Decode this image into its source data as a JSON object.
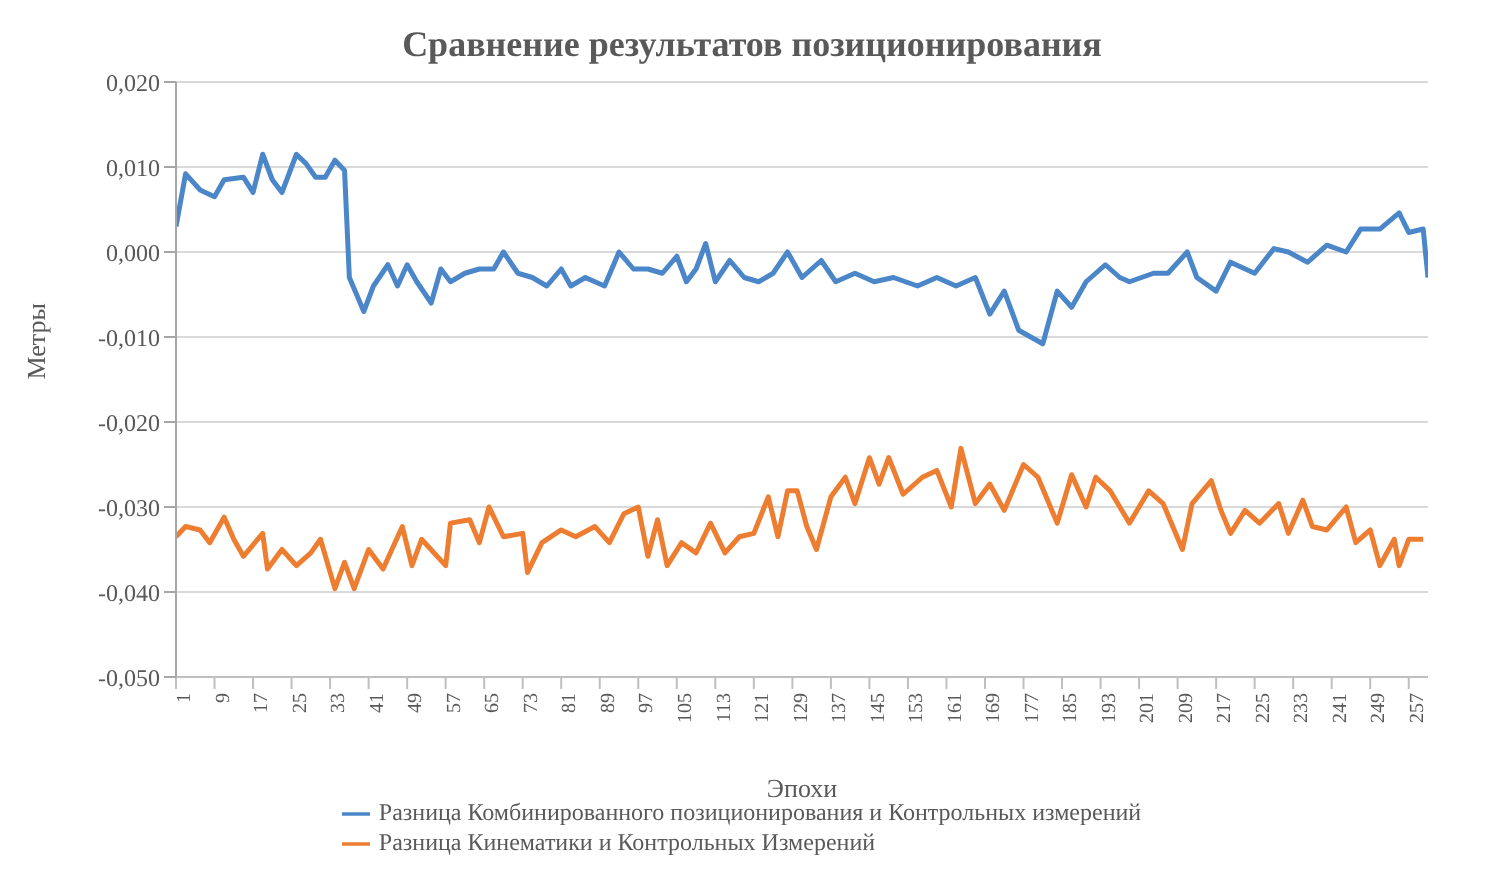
{
  "chart_data": {
    "type": "line",
    "title": "Сравнение результатов позиционирования",
    "xlabel": "Эпохи",
    "ylabel": "Метры",
    "xlim": [
      1,
      261
    ],
    "xticks": [
      1,
      9,
      17,
      25,
      33,
      41,
      49,
      57,
      65,
      73,
      81,
      89,
      97,
      105,
      113,
      121,
      129,
      137,
      145,
      153,
      161,
      169,
      177,
      185,
      193,
      201,
      209,
      217,
      225,
      233,
      241,
      249,
      257
    ],
    "ylim": [
      -0.05,
      0.02
    ],
    "yticks": [
      {
        "value": -0.05,
        "label": "-0,050"
      },
      {
        "value": -0.04,
        "label": "-0,040"
      },
      {
        "value": -0.03,
        "label": "-0,030"
      },
      {
        "value": -0.02,
        "label": "-0,020"
      },
      {
        "value": -0.01,
        "label": "-0,010"
      },
      {
        "value": 0,
        "label": "0,000"
      },
      {
        "value": 0.01,
        "label": "0,010"
      },
      {
        "value": 0.02,
        "label": "0,020"
      }
    ],
    "grid": "y",
    "legend": "bottom",
    "marker": "none",
    "line_style": "solid",
    "series": [
      {
        "name": "Разница Комбинированного позиционирования и Контрольных измерений",
        "color": "#4a86c8",
        "x": [
          1,
          3,
          6,
          9,
          11,
          15,
          17,
          19,
          21,
          23,
          26,
          28,
          30,
          32,
          34,
          36,
          37,
          40,
          42,
          45,
          47,
          49,
          51,
          54,
          56,
          58,
          61,
          64,
          67,
          69,
          72,
          75,
          78,
          81,
          83,
          86,
          90,
          93,
          96,
          99,
          102,
          105,
          107,
          109,
          111,
          113,
          116,
          119,
          122,
          125,
          128,
          131,
          135,
          138,
          142,
          146,
          150,
          155,
          159,
          163,
          167,
          170,
          173,
          176,
          181,
          184,
          187,
          190,
          194,
          197,
          199,
          204,
          207,
          211,
          213,
          217,
          220,
          225,
          229,
          232,
          236,
          240,
          244,
          247,
          251,
          255,
          257,
          260,
          261
        ],
        "values": [
          0.003,
          0.0092,
          0.0073,
          0.0065,
          0.0085,
          0.0088,
          0.007,
          0.0115,
          0.0085,
          0.007,
          0.0115,
          0.0104,
          0.0088,
          0.0088,
          0.0108,
          0.0096,
          -0.003,
          -0.007,
          -0.004,
          -0.0015,
          -0.004,
          -0.0015,
          -0.0035,
          -0.006,
          -0.002,
          -0.0035,
          -0.0025,
          -0.002,
          -0.002,
          0,
          -0.0025,
          -0.003,
          -0.004,
          -0.002,
          -0.004,
          -0.003,
          -0.004,
          0,
          -0.002,
          -0.002,
          -0.0025,
          -0.0005,
          -0.0035,
          -0.002,
          0.001,
          -0.0035,
          -0.001,
          -0.003,
          -0.0035,
          -0.0025,
          0,
          -0.003,
          -0.001,
          -0.0035,
          -0.0025,
          -0.0035,
          -0.003,
          -0.004,
          -0.003,
          -0.004,
          -0.003,
          -0.0073,
          -0.0046,
          -0.0092,
          -0.0108,
          -0.0046,
          -0.0065,
          -0.0035,
          -0.0015,
          -0.003,
          -0.0035,
          -0.0025,
          -0.0025,
          0,
          -0.003,
          -0.0046,
          -0.0012,
          -0.0025,
          0.0004,
          0,
          -0.0012,
          0.0008,
          0,
          0.0027,
          0.0027,
          0.0046,
          0.0023,
          0.0027,
          -0.003
        ]
      },
      {
        "name": "Разница Кинематики и Контрольных Измерений",
        "color": "#ed7d31",
        "x": [
          1,
          3,
          6,
          8,
          11,
          13,
          15,
          19,
          20,
          23,
          26,
          29,
          31,
          34,
          36,
          38,
          41,
          44,
          48,
          50,
          52,
          57,
          58,
          62,
          64,
          66,
          69,
          73,
          74,
          77,
          81,
          84,
          88,
          91,
          94,
          97,
          99,
          101,
          103,
          106,
          109,
          112,
          115,
          118,
          121,
          124,
          126,
          128,
          130,
          132,
          134,
          137,
          140,
          142,
          145,
          147,
          149,
          152,
          156,
          159,
          162,
          164,
          167,
          170,
          173,
          177,
          180,
          184,
          187,
          190,
          192,
          195,
          199,
          203,
          206,
          210,
          212,
          216,
          218,
          220,
          223,
          226,
          230,
          232,
          235,
          237,
          240,
          244,
          246,
          249,
          251,
          254,
          255,
          257,
          260
        ],
        "values": [
          -0.0335,
          -0.0323,
          -0.0327,
          -0.0342,
          -0.0312,
          -0.0338,
          -0.0358,
          -0.0331,
          -0.0373,
          -0.035,
          -0.0369,
          -0.0354,
          -0.0338,
          -0.0396,
          -0.0365,
          -0.0396,
          -0.035,
          -0.0373,
          -0.0323,
          -0.0369,
          -0.0338,
          -0.0369,
          -0.0319,
          -0.0315,
          -0.0342,
          -0.03,
          -0.0335,
          -0.0331,
          -0.0377,
          -0.0342,
          -0.0327,
          -0.0335,
          -0.0323,
          -0.0342,
          -0.0308,
          -0.03,
          -0.0358,
          -0.0315,
          -0.0369,
          -0.0342,
          -0.0354,
          -0.0319,
          -0.0354,
          -0.0335,
          -0.0331,
          -0.0288,
          -0.0335,
          -0.0281,
          -0.0281,
          -0.0323,
          -0.035,
          -0.0288,
          -0.0265,
          -0.0296,
          -0.0242,
          -0.0273,
          -0.0242,
          -0.0285,
          -0.0265,
          -0.0257,
          -0.03,
          -0.0231,
          -0.0296,
          -0.0273,
          -0.0304,
          -0.025,
          -0.0265,
          -0.0319,
          -0.0262,
          -0.03,
          -0.0265,
          -0.0281,
          -0.0319,
          -0.0281,
          -0.0296,
          -0.035,
          -0.0296,
          -0.0269,
          -0.0304,
          -0.0331,
          -0.0304,
          -0.0319,
          -0.0296,
          -0.0331,
          -0.0292,
          -0.0323,
          -0.0327,
          -0.03,
          -0.0342,
          -0.0327,
          -0.0369,
          -0.0338,
          -0.0369,
          -0.0338,
          -0.0338
        ]
      }
    ]
  }
}
